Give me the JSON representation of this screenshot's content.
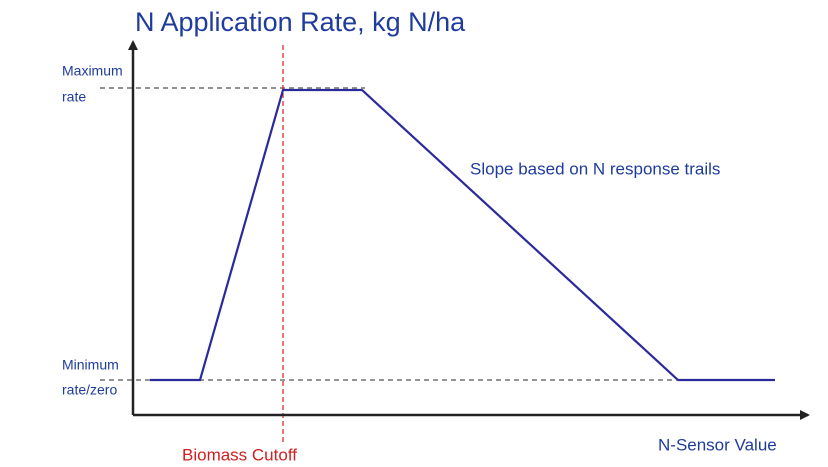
{
  "title": "N Application Rate, kg N/ha",
  "max_rate_label": [
    "Maximum",
    "rate"
  ],
  "min_rate_label": [
    "Minimum",
    "rate/zero"
  ],
  "slope_label": "Slope based on N response trails",
  "cutoff_label": "Biomass Cutoff",
  "x_axis_label": "N-Sensor Value"
}
